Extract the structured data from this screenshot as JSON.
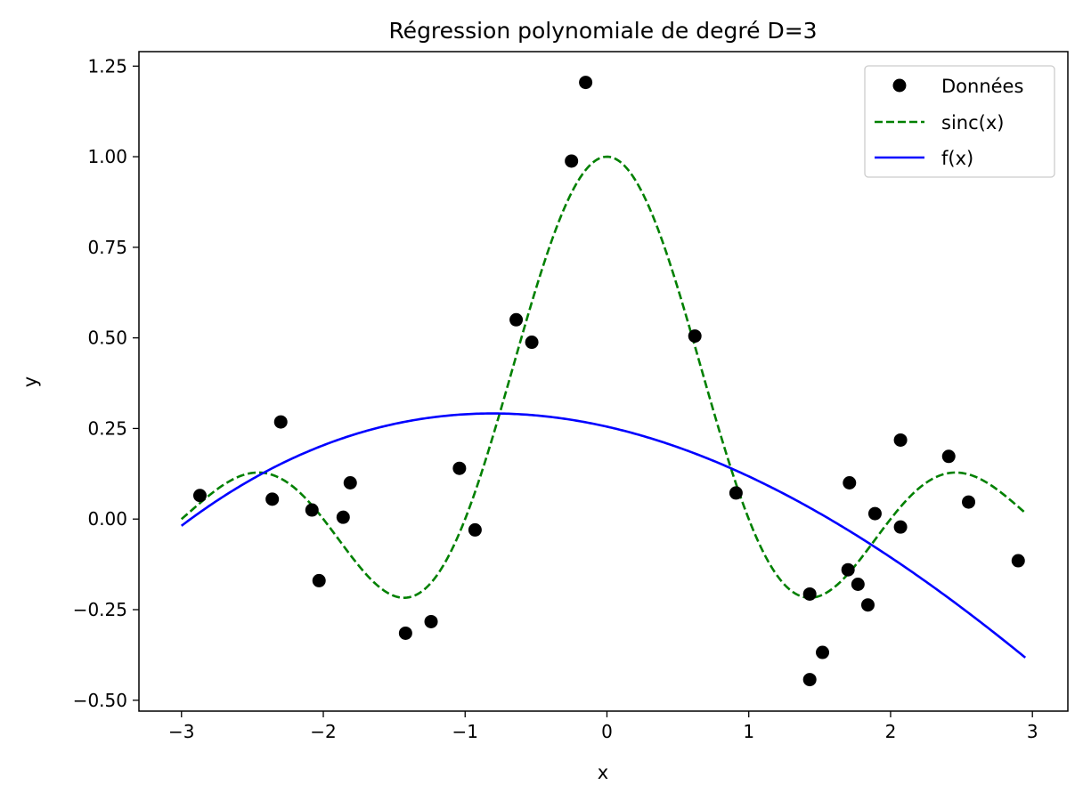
{
  "chart_data": {
    "type": "scatter",
    "title": "Régression polynomiale de degré D=3",
    "xlabel": "x",
    "ylabel": "y",
    "xlim": [
      -3.3,
      3.25
    ],
    "ylim": [
      -0.53,
      1.29
    ],
    "xticks": [
      -3,
      -2,
      -1,
      0,
      1,
      2,
      3
    ],
    "xtick_labels": [
      "−3",
      "−2",
      "−1",
      "0",
      "1",
      "2",
      "3"
    ],
    "yticks": [
      -0.5,
      -0.25,
      0.0,
      0.25,
      0.5,
      0.75,
      1.0,
      1.25
    ],
    "ytick_labels": [
      "−0.50",
      "−0.25",
      "0.00",
      "0.25",
      "0.50",
      "0.75",
      "1.00",
      "1.25"
    ],
    "grid": false,
    "legend_position": "top-right",
    "series": [
      {
        "name": "Données",
        "kind": "points",
        "color": "#000000",
        "points": [
          [
            -2.87,
            0.065
          ],
          [
            -2.36,
            0.055
          ],
          [
            -2.3,
            0.268
          ],
          [
            -2.08,
            0.025
          ],
          [
            -2.03,
            -0.17
          ],
          [
            -1.86,
            0.005
          ],
          [
            -1.81,
            0.1
          ],
          [
            -1.42,
            -0.315
          ],
          [
            -1.24,
            -0.283
          ],
          [
            -1.04,
            0.14
          ],
          [
            -0.93,
            -0.03
          ],
          [
            -0.64,
            0.55
          ],
          [
            -0.53,
            0.488
          ],
          [
            -0.25,
            0.988
          ],
          [
            -0.15,
            1.205
          ],
          [
            0.62,
            0.505
          ],
          [
            0.91,
            0.072
          ],
          [
            1.43,
            -0.207
          ],
          [
            1.43,
            -0.443
          ],
          [
            1.52,
            -0.368
          ],
          [
            1.7,
            -0.14
          ],
          [
            1.71,
            0.1
          ],
          [
            1.77,
            -0.18
          ],
          [
            1.84,
            -0.237
          ],
          [
            1.89,
            0.015
          ],
          [
            2.07,
            0.218
          ],
          [
            2.07,
            -0.022
          ],
          [
            2.41,
            0.173
          ],
          [
            2.55,
            0.047
          ],
          [
            2.9,
            -0.115
          ]
        ]
      },
      {
        "name": "sinc(x)",
        "kind": "function",
        "function": "sinc",
        "domain": [
          -3,
          2.95
        ],
        "color": "#008000",
        "style": "dashed"
      },
      {
        "name": "f(x)",
        "kind": "function",
        "function": "cubic",
        "domain": [
          -3,
          2.95
        ],
        "coefficients": [
          0.255,
          -0.0885,
          -0.0515,
          0.0028
        ],
        "color": "#0000ff",
        "style": "solid"
      }
    ]
  }
}
